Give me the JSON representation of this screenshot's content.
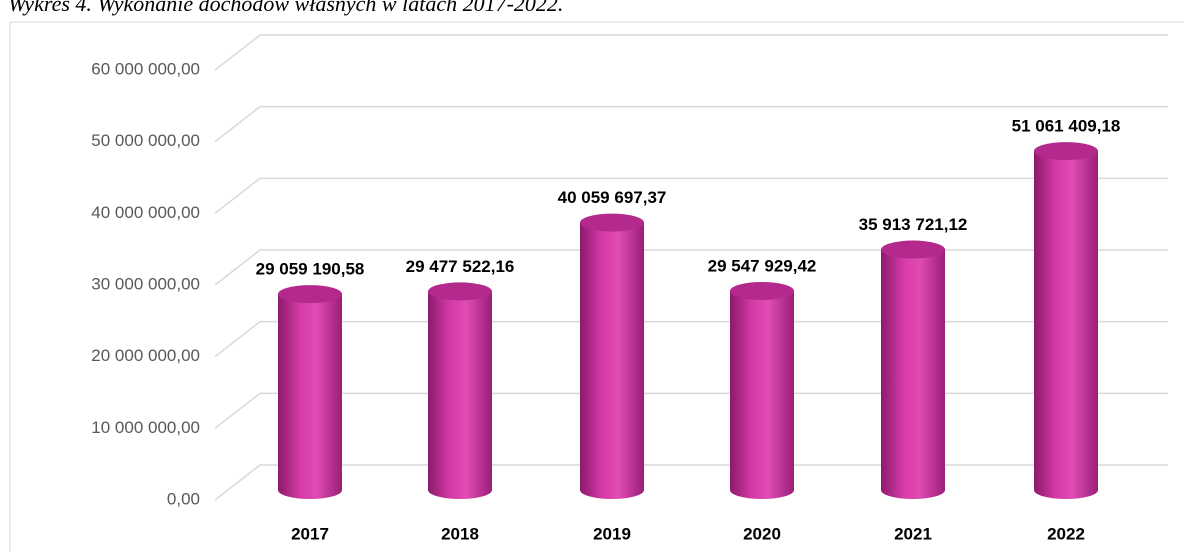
{
  "chart_data": {
    "type": "bar",
    "title": "Wykres 4. Wykonanie dochodów własnych w latach 2017-2022.",
    "categories": [
      "2017",
      "2018",
      "2019",
      "2020",
      "2021",
      "2022"
    ],
    "values": [
      29059190.58,
      29477522.16,
      40059697.37,
      29547929.42,
      35913721.12,
      51061409.18
    ],
    "value_labels": [
      "29 059 190,58",
      "29 477 522,16",
      "40 059 697,37",
      "29 547 929,42",
      "35 913 721,12",
      "51 061 409,18"
    ],
    "color": "#d63aa6",
    "ylim": [
      0,
      60000000
    ],
    "yticks": [
      {
        "value": 0,
        "label": "0,00"
      },
      {
        "value": 10000000,
        "label": "10 000 000,00"
      },
      {
        "value": 20000000,
        "label": "20 000 000,00"
      },
      {
        "value": 30000000,
        "label": "30 000 000,00"
      },
      {
        "value": 40000000,
        "label": "40 000 000,00"
      },
      {
        "value": 50000000,
        "label": "50 000 000,00"
      },
      {
        "value": 60000000,
        "label": "60 000 000,00"
      }
    ],
    "grid": true
  }
}
